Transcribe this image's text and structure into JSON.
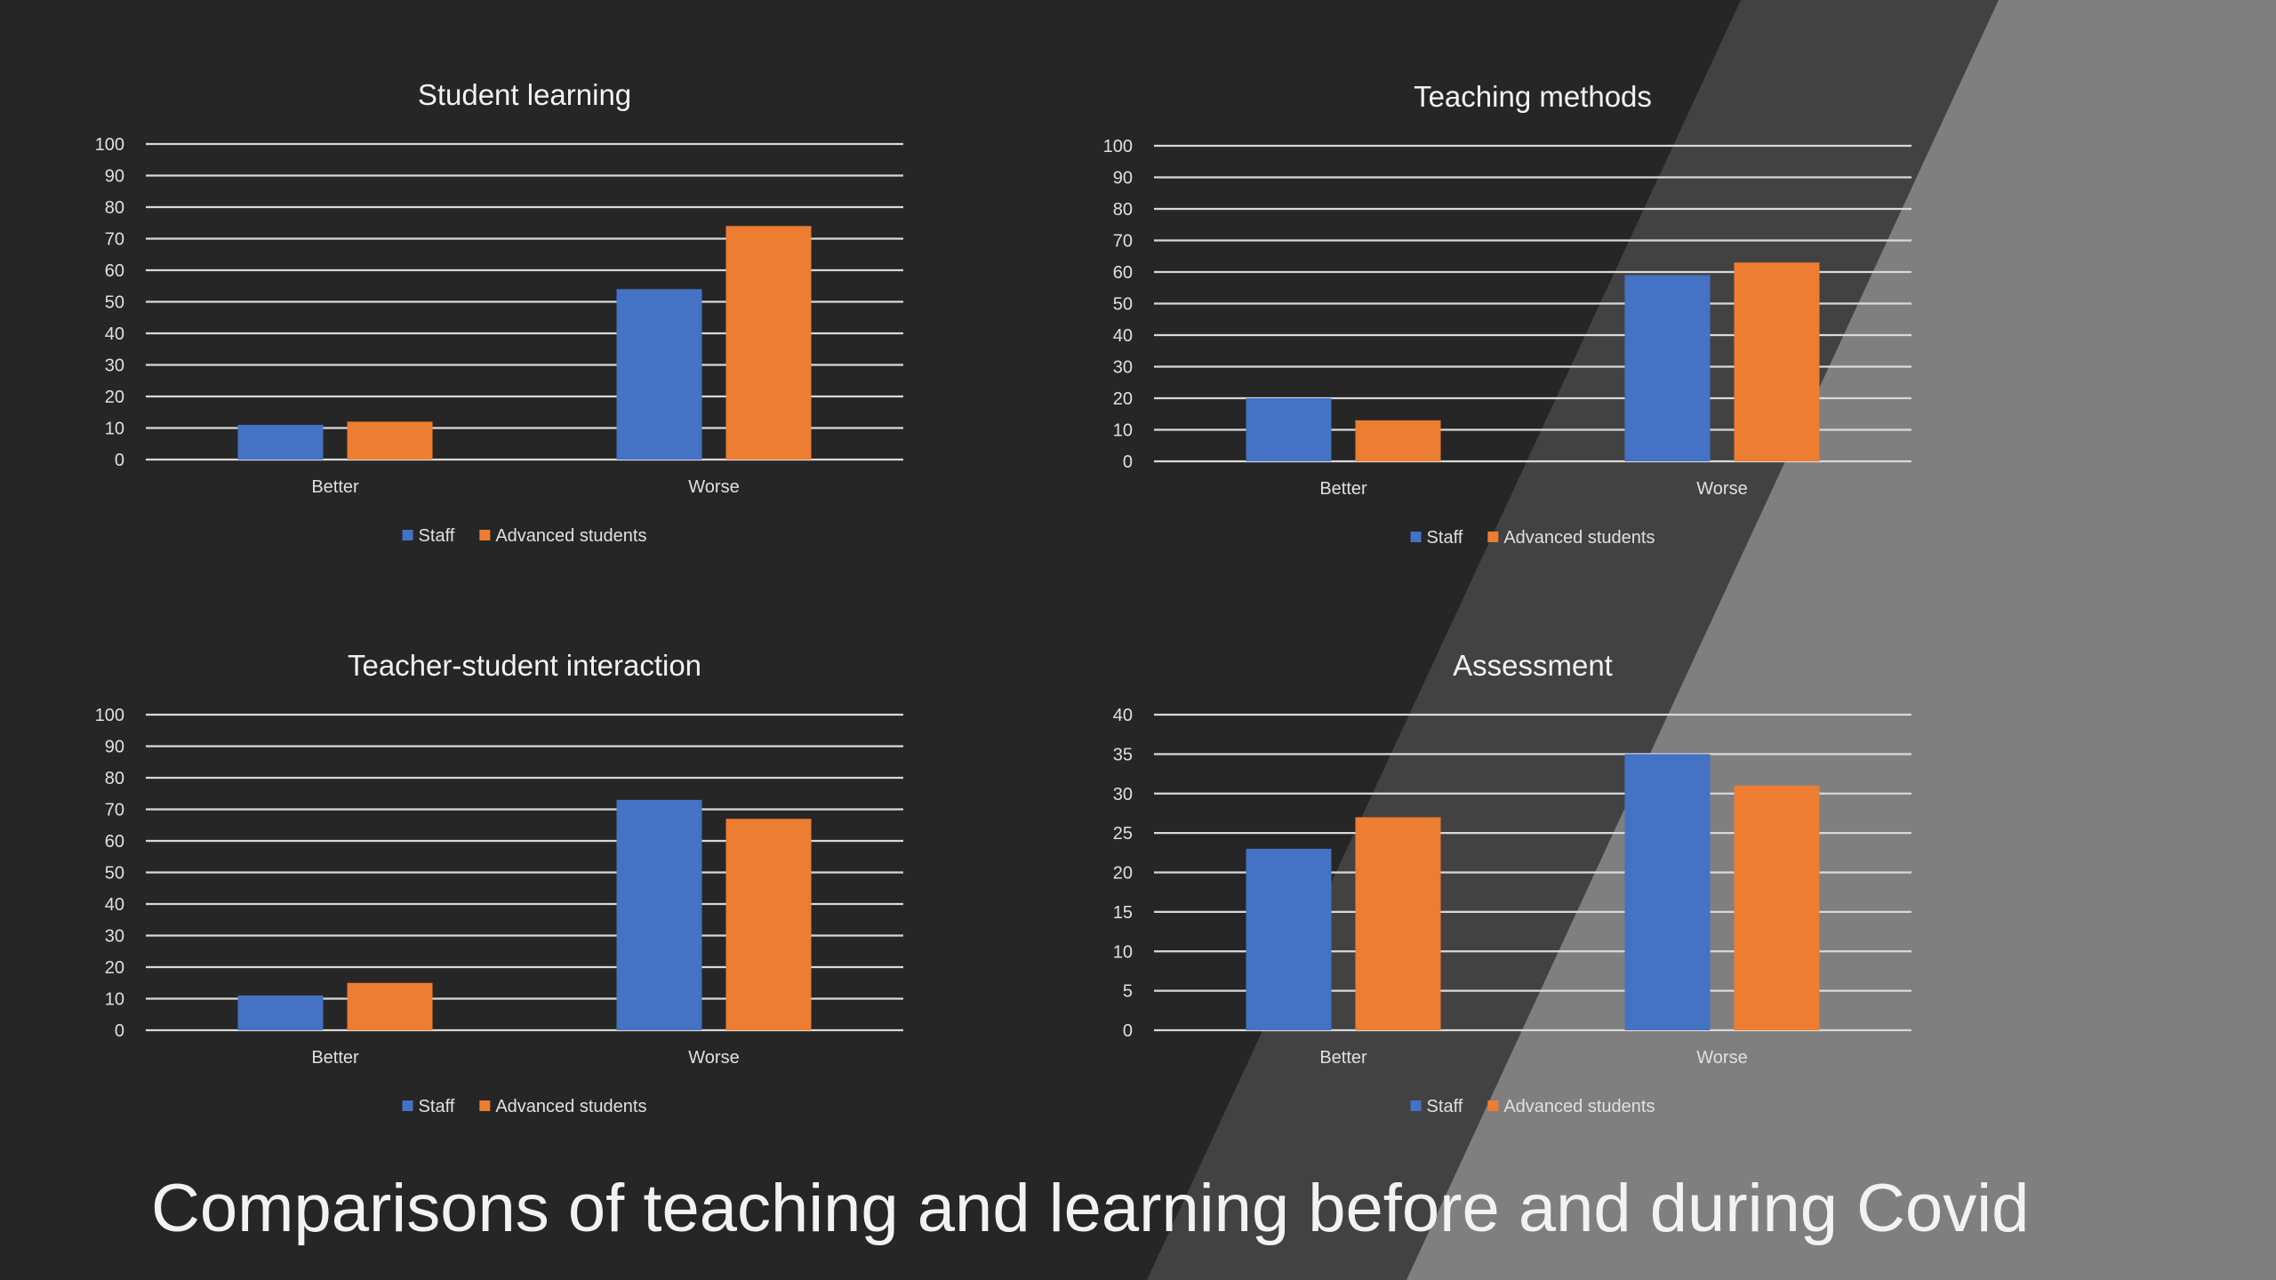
{
  "slide": {
    "title": "Comparisons of teaching and learning before and during Covid"
  },
  "colors": {
    "background": "#262626",
    "band_mid": "#424242",
    "band_light": "#7f7f7f",
    "staff": "#4472c4",
    "advanced_students": "#ed7d31",
    "text": "#f2f2f2",
    "axis_text": "#e0e0e0",
    "grid": "#d9d9d9"
  },
  "chart_data": [
    {
      "type": "bar",
      "title": "Student learning",
      "categories": [
        "Better",
        "Worse"
      ],
      "series": [
        {
          "name": "Staff",
          "values": [
            11,
            54
          ]
        },
        {
          "name": "Advanced students",
          "values": [
            12,
            74
          ]
        }
      ],
      "ylim": [
        0,
        100
      ],
      "yticks": [
        0,
        10,
        20,
        30,
        40,
        50,
        60,
        70,
        80,
        90,
        100
      ],
      "grid": true,
      "legend": "bottom"
    },
    {
      "type": "bar",
      "title": "Teaching methods",
      "categories": [
        "Better",
        "Worse"
      ],
      "series": [
        {
          "name": "Staff",
          "values": [
            20,
            59
          ]
        },
        {
          "name": "Advanced students",
          "values": [
            13,
            63
          ]
        }
      ],
      "ylim": [
        0,
        100
      ],
      "yticks": [
        0,
        10,
        20,
        30,
        40,
        50,
        60,
        70,
        80,
        90,
        100
      ],
      "grid": true,
      "legend": "bottom"
    },
    {
      "type": "bar",
      "title": "Teacher-student interaction",
      "categories": [
        "Better",
        "Worse"
      ],
      "series": [
        {
          "name": "Staff",
          "values": [
            11,
            73
          ]
        },
        {
          "name": "Advanced students",
          "values": [
            15,
            67
          ]
        }
      ],
      "ylim": [
        0,
        100
      ],
      "yticks": [
        0,
        10,
        20,
        30,
        40,
        50,
        60,
        70,
        80,
        90,
        100
      ],
      "grid": true,
      "legend": "bottom"
    },
    {
      "type": "bar",
      "title": "Assessment",
      "categories": [
        "Better",
        "Worse"
      ],
      "series": [
        {
          "name": "Staff",
          "values": [
            23,
            35
          ]
        },
        {
          "name": "Advanced students",
          "values": [
            27,
            31
          ]
        }
      ],
      "ylim": [
        0,
        40
      ],
      "yticks": [
        0,
        5,
        10,
        15,
        20,
        25,
        30,
        35,
        40
      ],
      "grid": true,
      "legend": "bottom"
    }
  ]
}
